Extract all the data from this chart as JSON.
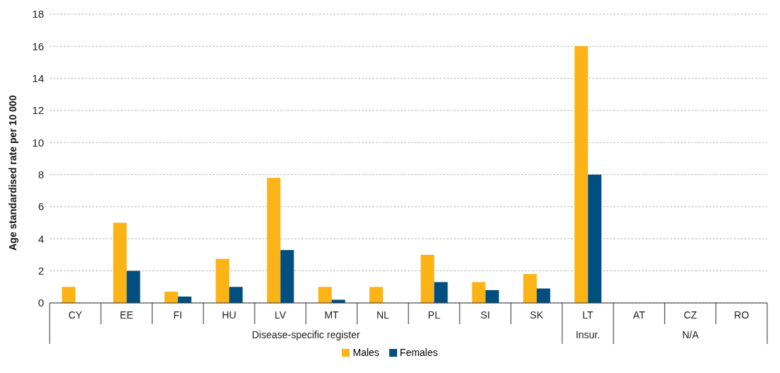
{
  "chart_data": {
    "type": "bar",
    "ylabel": "Age standardised rate per 10 000",
    "categories": [
      "CY",
      "EE",
      "FI",
      "HU",
      "LV",
      "MT",
      "NL",
      "PL",
      "SI",
      "SK",
      "LT",
      "AT",
      "CZ",
      "RO"
    ],
    "series": [
      {
        "name": "Males",
        "color": "#fbb316",
        "values": [
          1.0,
          5.0,
          0.7,
          2.75,
          7.8,
          1.0,
          1.0,
          3.0,
          1.3,
          1.8,
          16.0,
          null,
          null,
          null
        ]
      },
      {
        "name": "Females",
        "color": "#004f7e",
        "values": [
          null,
          2.0,
          0.4,
          1.0,
          3.3,
          0.2,
          null,
          1.3,
          0.8,
          0.9,
          8.0,
          null,
          null,
          null
        ]
      }
    ],
    "annotations": [
      "Disease-specific register",
      "Insur.",
      "N/A"
    ],
    "ylim": [
      0,
      18
    ],
    "yticks": [
      0,
      2,
      4,
      6,
      8,
      10,
      12,
      14,
      16,
      18
    ],
    "grid": "y",
    "legend": "bottom"
  }
}
